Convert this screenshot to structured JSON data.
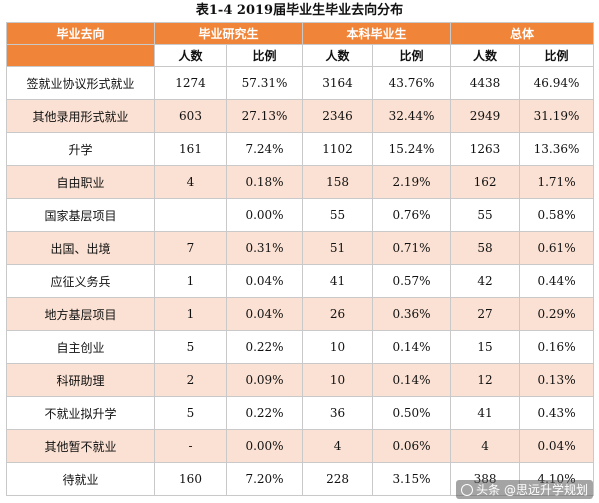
{
  "title": "表1-4      2019届毕业生毕业去向分布",
  "header": {
    "first_col": "毕业去向",
    "groups": [
      "毕业研究生",
      "本科毕业生",
      "总体"
    ],
    "sub": [
      "人数",
      "比例",
      "人数",
      "比例",
      "人数",
      "比例"
    ]
  },
  "rows": [
    {
      "label": "签就业协议形式就业",
      "vals": [
        "1274",
        "57.31%",
        "3164",
        "43.76%",
        "4438",
        "46.94%"
      ]
    },
    {
      "label": "其他录用形式就业",
      "vals": [
        "603",
        "27.13%",
        "2346",
        "32.44%",
        "2949",
        "31.19%"
      ]
    },
    {
      "label": "升学",
      "vals": [
        "161",
        "7.24%",
        "1102",
        "15.24%",
        "1263",
        "13.36%"
      ]
    },
    {
      "label": "自由职业",
      "vals": [
        "4",
        "0.18%",
        "158",
        "2.19%",
        "162",
        "1.71%"
      ]
    },
    {
      "label": "国家基层项目",
      "vals": [
        "",
        "0.00%",
        "55",
        "0.76%",
        "55",
        "0.58%"
      ]
    },
    {
      "label": "出国、出境",
      "vals": [
        "7",
        "0.31%",
        "51",
        "0.71%",
        "58",
        "0.61%"
      ]
    },
    {
      "label": "应征义务兵",
      "vals": [
        "1",
        "0.04%",
        "41",
        "0.57%",
        "42",
        "0.44%"
      ]
    },
    {
      "label": "地方基层项目",
      "vals": [
        "1",
        "0.04%",
        "26",
        "0.36%",
        "27",
        "0.29%"
      ]
    },
    {
      "label": "自主创业",
      "vals": [
        "5",
        "0.22%",
        "10",
        "0.14%",
        "15",
        "0.16%"
      ]
    },
    {
      "label": "科研助理",
      "vals": [
        "2",
        "0.09%",
        "10",
        "0.14%",
        "12",
        "0.13%"
      ]
    },
    {
      "label": "不就业拟升学",
      "vals": [
        "5",
        "0.22%",
        "36",
        "0.50%",
        "41",
        "0.43%"
      ]
    },
    {
      "label": "其他暂不就业",
      "vals": [
        "-",
        "0.00%",
        "4",
        "0.06%",
        "4",
        "0.04%"
      ]
    },
    {
      "label": "待就业",
      "vals": [
        "160",
        "7.20%",
        "228",
        "3.15%",
        "388",
        "4.10%"
      ]
    }
  ],
  "watermark": "头条 @思远升学规划"
}
